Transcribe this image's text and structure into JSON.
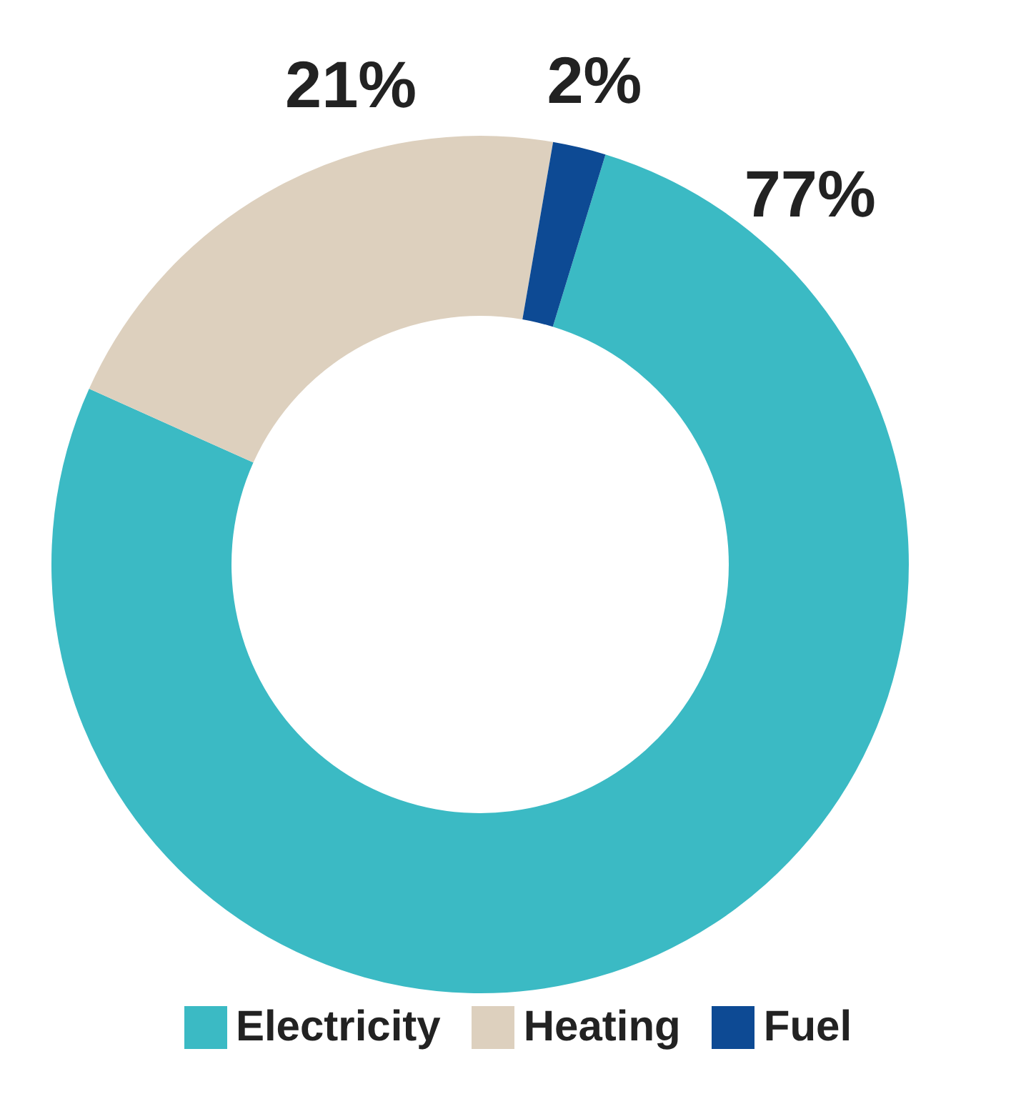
{
  "chart_data": {
    "type": "donut",
    "categories": [
      "Electricity",
      "Heating",
      "Fuel"
    ],
    "values": [
      77,
      21,
      2
    ],
    "colors": [
      "#3bbac4",
      "#ddd0be",
      "#0d4a94"
    ],
    "value_labels": [
      "77%",
      "21%",
      "2%"
    ],
    "legend": "bottom"
  }
}
